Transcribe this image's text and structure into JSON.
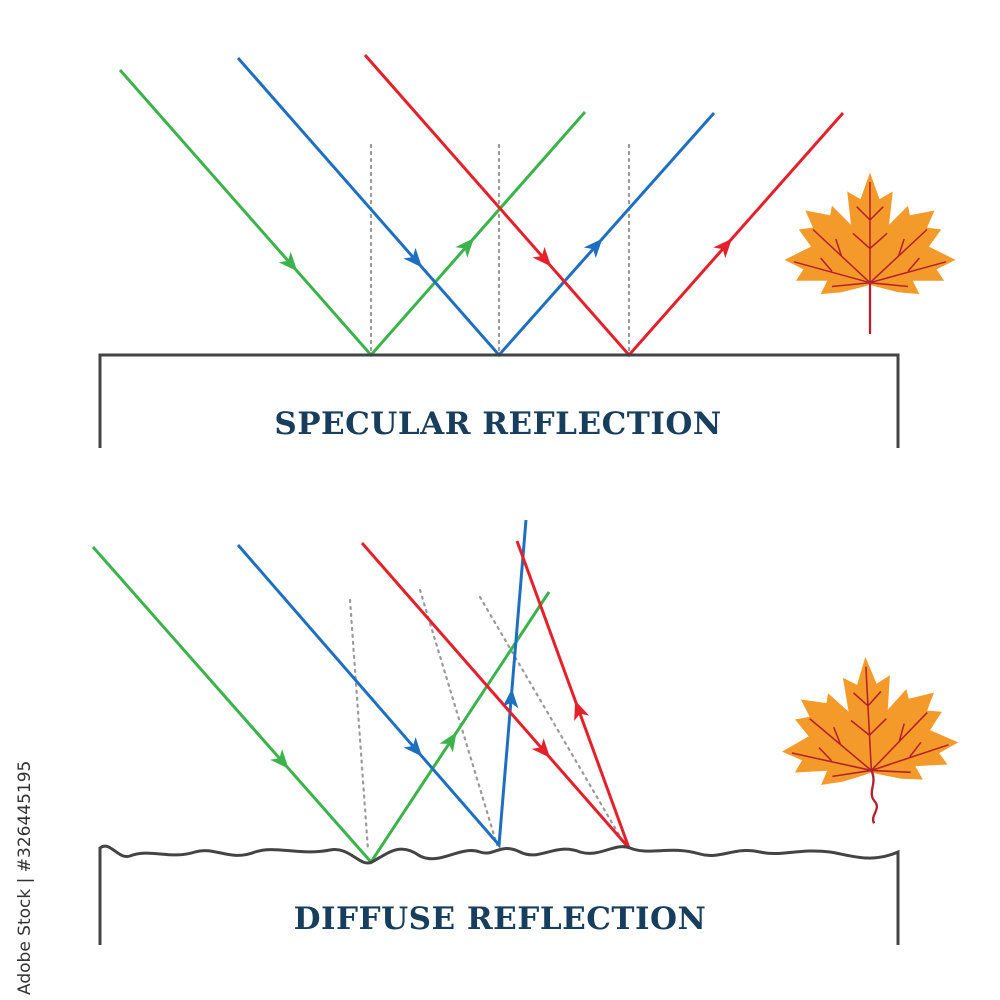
{
  "specular": {
    "title": "SPECULAR REFLECTION"
  },
  "diffuse": {
    "title": "DIFFUSE REFLECTION"
  },
  "watermark": "Adobe Stock | #326445195",
  "colors": {
    "green": "#3bb34a",
    "blue": "#1f6fc0",
    "red": "#e4202a",
    "surface": "#444444",
    "normal": "#9a9a9a",
    "title": "#173e5c",
    "leaf": "#f39a2a",
    "leaf_vein": "#b5202e"
  },
  "icons": [
    "maple-leaf-icon",
    "maple-leaf-icon"
  ]
}
